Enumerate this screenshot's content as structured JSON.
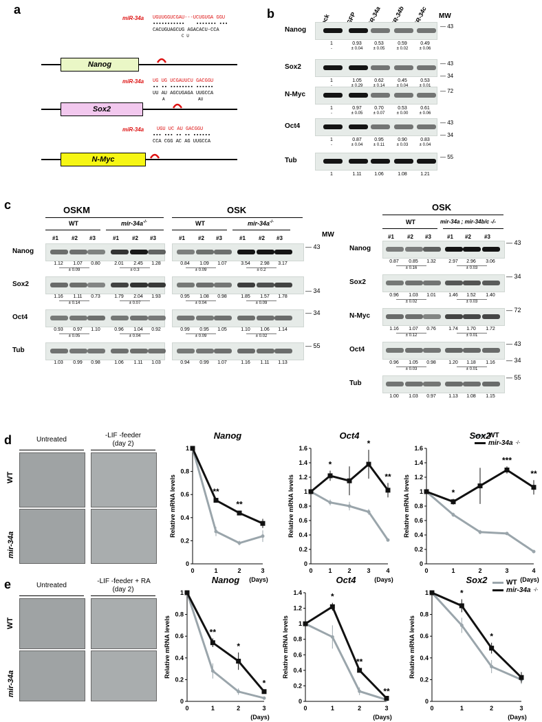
{
  "a": {
    "label": "a",
    "mir": "miR-34a",
    "nanog": {
      "gene": "Nanog",
      "mir_seq": "UGUUGGUCGAU---UCUGUGA  GGU",
      "pair_line": "CACUGUAGCUG   AGACACU-CCA",
      "gap_top": "C",
      "gap_bottom": "U",
      "gap_bottom2": "C U"
    },
    "sox2": {
      "gene": "Sox2",
      "mir_seq": "UG  UG  UCGAUUCU  GACGGU",
      "pair_line": "UU  AU   AGCUGAGA   UUGCCA",
      "loop": "A",
      "loop2": "AU"
    },
    "nmyc": {
      "gene": "N-Myc",
      "mir_seq": "UGU  UC   AU   GACGGU",
      "pair_line": "CCA   CGG  AC   AG  UUGCCA"
    }
  },
  "b": {
    "label": "b",
    "lanes": [
      "Mock",
      "siGFP",
      "miR-34a",
      "miR-34b",
      "miR-34c"
    ],
    "mw_title": "MW",
    "rows": [
      {
        "name": "Nanog",
        "v1": [
          "1",
          "0.93",
          "0.53",
          "0.59",
          "0.49"
        ],
        "v2": [
          "-",
          "± 0.04",
          "± 0.05",
          "± 0.02",
          "± 0.06"
        ],
        "mw": [
          "43"
        ]
      },
      {
        "name": "Sox2",
        "v1": [
          "1",
          "1.05",
          "0.62",
          "0.45",
          "0.53"
        ],
        "v2": [
          "-",
          "± 0.29",
          "± 0.14",
          "± 0.04",
          "± 0.01"
        ],
        "mw": [
          "43",
          "34"
        ]
      },
      {
        "name": "N-Myc",
        "v1": [
          "1",
          "0.97",
          "0.70",
          "0.53",
          "0.61"
        ],
        "v2": [
          "-",
          "± 0.05",
          "± 0.07",
          "± 0.00",
          "± 0.06"
        ],
        "mw": [
          "72"
        ]
      },
      {
        "name": "Oct4",
        "v1": [
          "1",
          "0.87",
          "0.95",
          "0.90",
          "0.83"
        ],
        "v2": [
          "-",
          "± 0.04",
          "± 0.11",
          "± 0.03",
          "± 0.04"
        ],
        "mw": [
          "43",
          "34"
        ]
      },
      {
        "name": "Tub",
        "v1": [
          "1",
          "1.11",
          "1.06",
          "1.08",
          "1.21"
        ],
        "v2": [],
        "mw": [
          "55"
        ]
      }
    ]
  },
  "c": {
    "label": "c",
    "mw_title": "MW",
    "left": {
      "group1": "OSKM",
      "group2": "OSK",
      "wt": "WT",
      "ko": "mir-34a",
      "lanes": [
        "#1",
        "#2",
        "#3"
      ],
      "rows": [
        {
          "name": "Nanog",
          "oskm": [
            "1.12",
            "1.07",
            "0.80",
            "2.01",
            "2.45",
            "1.28"
          ],
          "oskm_sd": [
            "± 0.09",
            "± 0.3"
          ],
          "osk": [
            "0.84",
            "1.09",
            "1.07",
            "3.54",
            "2.98",
            "3.17"
          ],
          "osk_sd": [
            "± 0.09",
            "± 0.2"
          ],
          "mw": "43"
        },
        {
          "name": "Sox2",
          "oskm": [
            "1.16",
            "1.11",
            "0.73",
            "1.79",
            "2.04",
            "1.93"
          ],
          "oskm_sd": [
            "± 0.14",
            "± 0.07"
          ],
          "osk": [
            "0.95",
            "1.08",
            "0.98",
            "1.85",
            "1.57",
            "1.78"
          ],
          "osk_sd": [
            "± 0.04",
            "± 0.09"
          ],
          "mw": "34"
        },
        {
          "name": "Oct4",
          "oskm": [
            "0.93",
            "0.97",
            "1.10",
            "0.96",
            "1.04",
            "0.92"
          ],
          "oskm_sd": [
            "± 0.05",
            "± 0.04"
          ],
          "osk": [
            "0.99",
            "0.95",
            "1.05",
            "1.10",
            "1.06",
            "1.14"
          ],
          "osk_sd": [
            "± 0.09",
            "± 0.02"
          ],
          "mw": "34"
        },
        {
          "name": "Tub",
          "oskm": [
            "1.03",
            "0.99",
            "0.98",
            "1.06",
            "1.11",
            "1.03"
          ],
          "oskm_sd": [],
          "osk": [
            "0.94",
            "0.99",
            "1.07",
            "1.16",
            "1.11",
            "1.13"
          ],
          "osk_sd": [],
          "mw": "55"
        }
      ]
    },
    "right": {
      "group": "OSK",
      "wt": "WT",
      "ko": "mir-34a  ; mir-34b/c",
      "lanes": [
        "#1",
        "#2",
        "#3"
      ],
      "rows": [
        {
          "name": "Nanog",
          "v": [
            "0.87",
            "0.85",
            "1.32",
            "2.97",
            "2.96",
            "3.06"
          ],
          "sd": [
            "± 0.16",
            "± 0.03"
          ],
          "mw": [
            "43"
          ]
        },
        {
          "name": "Sox2",
          "v": [
            "0.96",
            "1.03",
            "1.01",
            "1.46",
            "1.52",
            "1.40"
          ],
          "sd": [
            "± 0.02",
            "± 0.03"
          ],
          "mw": [
            "34"
          ]
        },
        {
          "name": "N-Myc",
          "v": [
            "1.16",
            "1.07",
            "0.76",
            "1.74",
            "1.70",
            "1.72"
          ],
          "sd": [
            "± 0.12",
            "± 0.01"
          ],
          "mw": [
            "72"
          ]
        },
        {
          "name": "Oct4",
          "v": [
            "0.96",
            "1.05",
            "0.98",
            "1.20",
            "1.18",
            "1.16"
          ],
          "sd": [
            "± 0.03",
            "± 0.01"
          ],
          "mw": [
            "43",
            "34"
          ]
        },
        {
          "name": "Tub",
          "v": [
            "1.00",
            "1.03",
            "0.97",
            "1.13",
            "1.08",
            "1.15"
          ],
          "sd": [],
          "mw": [
            "55"
          ]
        }
      ]
    }
  },
  "d": {
    "label": "d",
    "col1": "Untreated",
    "col2a": "-LIF -feeder",
    "col2b": "(day 2)",
    "row1": "WT",
    "row2": "mir-34a",
    "legend": {
      "wt": "WT",
      "ko": "mir-34a"
    },
    "ylabel": "Relative mRNA levels",
    "xlabel": "(Days)"
  },
  "e": {
    "label": "e",
    "col1": "Untreated",
    "col2a": "-LIF -feeder + RA",
    "col2b": "(day 2)",
    "row1": "WT",
    "row2": "mir-34a",
    "legend": {
      "wt": "WT",
      "ko": "mir-34a"
    },
    "ylabel": "Relative mRNA levels",
    "xlabel": "(Days)"
  },
  "colors": {
    "wt": "#9aa5ab",
    "ko": "#111111",
    "mir": "#d11111",
    "hairpin": "#dd1111",
    "nanog_box": "#eaf7c6",
    "sox2_box": "#f2c8ee",
    "nmyc_box": "#f6f614"
  },
  "chart_data": [
    {
      "type": "line",
      "title": "Nanog",
      "panel": "d",
      "x": [
        0,
        1,
        2,
        3
      ],
      "xticks": [
        "0",
        "1",
        "2",
        "3"
      ],
      "ylim": [
        0,
        1
      ],
      "yticks": [
        "0",
        "0.2",
        "0.4",
        "0.6",
        "0.8",
        "1"
      ],
      "series": [
        {
          "name": "WT",
          "values": [
            1,
            0.28,
            0.18,
            0.24
          ],
          "err": [
            0,
            0.04,
            0.02,
            0.05
          ]
        },
        {
          "name": "mir-34a",
          "values": [
            1,
            0.55,
            0.44,
            0.35
          ],
          "err": [
            0,
            0.02,
            0.02,
            0.04
          ]
        }
      ],
      "annotations": [
        {
          "x": 1,
          "text": "**"
        },
        {
          "x": 2,
          "text": "**"
        }
      ]
    },
    {
      "type": "line",
      "title": "Oct4",
      "panel": "d",
      "x": [
        0,
        1,
        2,
        3,
        4
      ],
      "xticks": [
        "0",
        "1",
        "2",
        "3",
        "4"
      ],
      "ylim": [
        0,
        1.6
      ],
      "yticks": [
        "0",
        "0.2",
        "0.4",
        "0.6",
        "0.8",
        "1",
        "1.2",
        "1.4",
        "1.6"
      ],
      "series": [
        {
          "name": "WT",
          "values": [
            1,
            0.85,
            0.8,
            0.72,
            0.33
          ],
          "err": [
            0,
            0.04,
            0.06,
            0.04,
            0.02
          ]
        },
        {
          "name": "mir-34a",
          "values": [
            1,
            1.22,
            1.15,
            1.38,
            1.02
          ],
          "err": [
            0,
            0.07,
            0.2,
            0.2,
            0.1
          ]
        }
      ],
      "annotations": [
        {
          "x": 1,
          "text": "*"
        },
        {
          "x": 3,
          "text": "*"
        },
        {
          "x": 4,
          "text": "**"
        }
      ]
    },
    {
      "type": "line",
      "title": "Sox2",
      "panel": "d",
      "x": [
        0,
        1,
        2,
        3,
        4
      ],
      "xticks": [
        "0",
        "1",
        "2",
        "3",
        "4"
      ],
      "ylim": [
        0,
        1.6
      ],
      "yticks": [
        "0",
        "0.2",
        "0.4",
        "0.6",
        "0.8",
        "1",
        "1.2",
        "1.4",
        "1.6"
      ],
      "series": [
        {
          "name": "WT",
          "values": [
            1,
            0.68,
            0.44,
            0.42,
            0.17
          ],
          "err": [
            0,
            0.03,
            0.03,
            0.02,
            0.02
          ]
        },
        {
          "name": "mir-34a",
          "values": [
            1,
            0.86,
            1.08,
            1.3,
            1.06
          ],
          "err": [
            0,
            0.04,
            0.25,
            0.05,
            0.1
          ]
        }
      ],
      "annotations": [
        {
          "x": 1,
          "text": "*"
        },
        {
          "x": 3,
          "text": "***"
        },
        {
          "x": 4,
          "text": "**"
        }
      ]
    },
    {
      "type": "line",
      "title": "Nanog",
      "panel": "e",
      "x": [
        0,
        1,
        2,
        3
      ],
      "xticks": [
        "0",
        "1",
        "2",
        "3"
      ],
      "ylim": [
        0,
        1
      ],
      "yticks": [
        "0",
        "0.2",
        "0.4",
        "0.6",
        "0.8",
        "1"
      ],
      "series": [
        {
          "name": "WT",
          "values": [
            1,
            0.28,
            0.09,
            0.03
          ],
          "err": [
            0,
            0.07,
            0.03,
            0.01
          ]
        },
        {
          "name": "mir-34a",
          "values": [
            1,
            0.54,
            0.37,
            0.09
          ],
          "err": [
            0,
            0.04,
            0.08,
            0.02
          ]
        }
      ],
      "annotations": [
        {
          "x": 1,
          "text": "**"
        },
        {
          "x": 2,
          "text": "*"
        },
        {
          "x": 3,
          "text": "*"
        }
      ]
    },
    {
      "type": "line",
      "title": "Oct4",
      "panel": "e",
      "x": [
        0,
        1,
        2,
        3
      ],
      "xticks": [
        "0",
        "1",
        "2",
        "3"
      ],
      "ylim": [
        0,
        1.4
      ],
      "yticks": [
        "0",
        "0.2",
        "0.4",
        "0.6",
        "0.8",
        "1",
        "1.2",
        "1.4"
      ],
      "series": [
        {
          "name": "WT",
          "values": [
            1,
            0.83,
            0.13,
            0.02
          ],
          "err": [
            0,
            0.15,
            0.05,
            0.01
          ]
        },
        {
          "name": "mir-34a",
          "values": [
            1,
            1.22,
            0.4,
            0.04
          ],
          "err": [
            0,
            0.05,
            0.03,
            0.01
          ]
        }
      ],
      "annotations": [
        {
          "x": 1,
          "text": "*"
        },
        {
          "x": 2,
          "text": "**"
        },
        {
          "x": 3,
          "text": "**"
        }
      ]
    },
    {
      "type": "line",
      "title": "Sox2",
      "panel": "e",
      "x": [
        0,
        1,
        2,
        3
      ],
      "xticks": [
        "0",
        "1",
        "2",
        "3"
      ],
      "ylim": [
        0,
        1
      ],
      "yticks": [
        "0",
        "0.2",
        "0.4",
        "0.6",
        "0.8",
        "1"
      ],
      "series": [
        {
          "name": "WT",
          "values": [
            1,
            0.7,
            0.32,
            0.2
          ],
          "err": [
            0,
            0.07,
            0.06,
            0.04
          ]
        },
        {
          "name": "mir-34a",
          "values": [
            1,
            0.88,
            0.49,
            0.22
          ],
          "err": [
            0,
            0.06,
            0.05,
            0.05
          ]
        }
      ],
      "annotations": [
        {
          "x": 1,
          "text": "*"
        },
        {
          "x": 2,
          "text": "*"
        }
      ]
    }
  ]
}
